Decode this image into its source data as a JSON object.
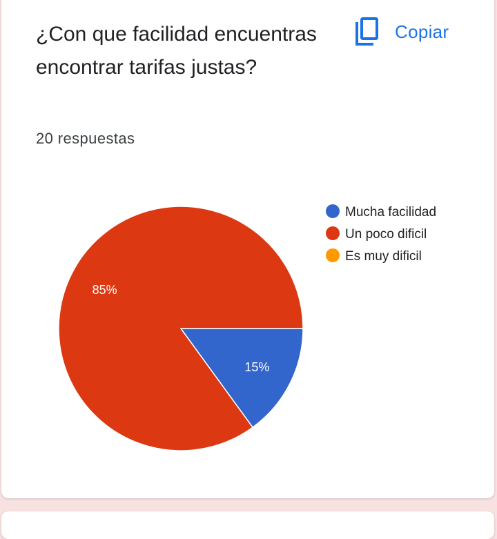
{
  "card": {
    "title": "¿Con que facilidad encuentras encontrar tarifas justas?",
    "responses": "20 respuestas",
    "copy_label": "Copiar",
    "copy_icon": "copy-icon"
  },
  "chart_data": {
    "type": "pie",
    "title": "",
    "categories": [
      "Mucha facilidad",
      "Un poco dificil",
      "Es muy dificil"
    ],
    "values": [
      15,
      85,
      0
    ],
    "labels": [
      "15%",
      "85%",
      ""
    ],
    "colors": [
      "#3366cc",
      "#dc3912",
      "#ff9900"
    ],
    "legend_position": "right"
  }
}
